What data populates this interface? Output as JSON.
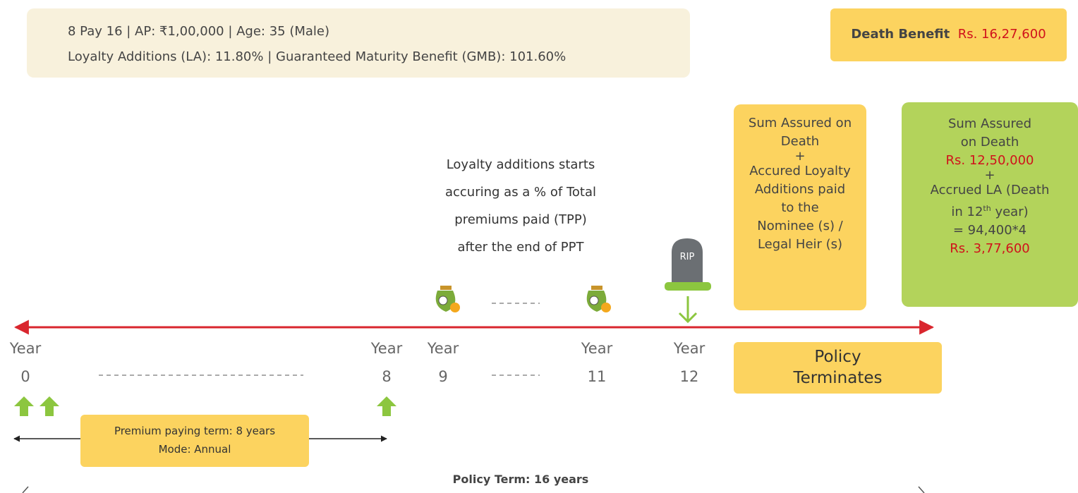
{
  "info": {
    "line1": "8 Pay 16 | AP: ₹1,00,000 | Age: 35 (Male)",
    "line2": "Loyalty Additions (LA): 11.80% | Guaranteed Maturity Benefit (GMB): 101.60%"
  },
  "death_benefit": {
    "label": "Death Benefit",
    "value": "Rs. 16,27,600"
  },
  "yellow_box": {
    "lines": [
      "Sum Assured on",
      "Death",
      "+",
      "Accured Loyalty",
      "Additions paid",
      "to the",
      "Nominee (s) /",
      "Legal Heir (s)"
    ]
  },
  "green_box": {
    "line1": "Sum Assured",
    "line2": "on Death",
    "amount1": "Rs. 12,50,000",
    "plus": "+",
    "line3": "Accrued LA (Death",
    "line4_pre": "in 12",
    "line4_sup": "th",
    "line4_post": " year)",
    "line5": "= 94,400*4",
    "amount2": "Rs. 3,77,600"
  },
  "loyalty_note": {
    "lines": [
      "Loyalty additions starts",
      "accuring as a % of Total",
      "premiums paid (TPP)",
      "after the end of PPT"
    ]
  },
  "tombstone": "RIP",
  "timeline": {
    "years": [
      {
        "label": "Year",
        "number": "0"
      },
      {
        "label": "Year",
        "number": "8"
      },
      {
        "label": "Year",
        "number": "9"
      },
      {
        "label": "Year",
        "number": "11"
      },
      {
        "label": "Year",
        "number": "12"
      }
    ]
  },
  "terminates": {
    "lines": [
      "Policy",
      "Terminates"
    ]
  },
  "premium_box": {
    "lines": [
      "Premium paying term: 8 years",
      "Mode: Annual"
    ]
  },
  "policy_term": "Policy Term: 16 years"
}
